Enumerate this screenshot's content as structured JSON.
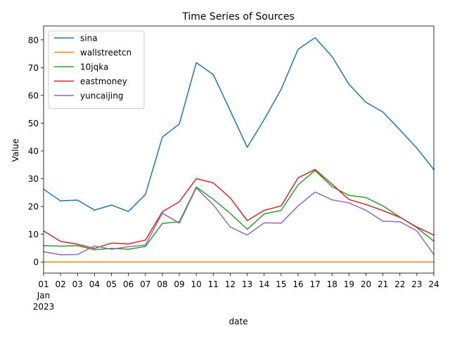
{
  "chart_data": {
    "type": "line",
    "title": "Time Series of Sources",
    "xlabel": "date",
    "ylabel": "Value",
    "x_tick_labels": [
      "01",
      "02",
      "03",
      "04",
      "05",
      "06",
      "07",
      "08",
      "09",
      "10",
      "11",
      "12",
      "13",
      "14",
      "15",
      "16",
      "17",
      "18",
      "19",
      "20",
      "21",
      "22",
      "23",
      "24"
    ],
    "x_tick_sublabel": [
      "Jan",
      "2023"
    ],
    "x": [
      "2023-01-01",
      "2023-01-02",
      "2023-01-03",
      "2023-01-04",
      "2023-01-05",
      "2023-01-06",
      "2023-01-07",
      "2023-01-08",
      "2023-01-09",
      "2023-01-10",
      "2023-01-11",
      "2023-01-12",
      "2023-01-13",
      "2023-01-14",
      "2023-01-15",
      "2023-01-16",
      "2023-01-17",
      "2023-01-18",
      "2023-01-19",
      "2023-01-20",
      "2023-01-21",
      "2023-01-22",
      "2023-01-23",
      "2023-01-24"
    ],
    "xlim": [
      "2023-01-01",
      "2023-01-24"
    ],
    "ylim": [
      -4,
      85
    ],
    "y_ticks": [
      0,
      10,
      20,
      30,
      40,
      50,
      60,
      70,
      80
    ],
    "grid": false,
    "legend_position": "top-left",
    "series": [
      {
        "name": "sina",
        "color": "#1f77b4",
        "values": [
          26.2,
          22.0,
          22.3,
          18.7,
          20.5,
          18.2,
          24.3,
          45.0,
          49.7,
          71.8,
          67.5,
          54.5,
          41.3,
          51.3,
          62.2,
          76.6,
          80.8,
          74.0,
          64.0,
          57.5,
          54.0,
          47.6,
          41.0,
          33.3
        ]
      },
      {
        "name": "wallstreetcn",
        "color": "#ff7f0e",
        "values": [
          0,
          0,
          0,
          0,
          0,
          0,
          0,
          0,
          0,
          0,
          0,
          0,
          0,
          0,
          0,
          0,
          0,
          0,
          0,
          0,
          0,
          0,
          0,
          0
        ]
      },
      {
        "name": "10jqka",
        "color": "#2ca02c",
        "values": [
          5.9,
          5.7,
          5.9,
          4.4,
          4.9,
          4.6,
          5.6,
          13.9,
          14.5,
          27.0,
          22.6,
          17.5,
          11.8,
          17.3,
          18.6,
          27.8,
          33.0,
          27.1,
          24.0,
          23.2,
          20.2,
          16.2,
          12.4,
          7.5
        ]
      },
      {
        "name": "eastmoney",
        "color": "#d62728",
        "values": [
          11.2,
          7.4,
          6.4,
          4.9,
          6.8,
          6.5,
          7.9,
          18.1,
          21.7,
          30.0,
          28.5,
          23.1,
          14.9,
          18.6,
          20.2,
          30.3,
          33.3,
          28.0,
          22.5,
          20.7,
          18.5,
          16.1,
          12.6,
          9.7
        ]
      },
      {
        "name": "yuncaijing",
        "color": "#9467bd",
        "values": [
          3.7,
          2.6,
          2.7,
          5.8,
          4.6,
          5.5,
          6.1,
          17.6,
          14.0,
          26.7,
          20.6,
          12.6,
          9.7,
          14.1,
          14.0,
          20.2,
          25.2,
          22.4,
          21.3,
          18.6,
          14.7,
          14.5,
          11.2,
          2.7
        ]
      }
    ]
  }
}
